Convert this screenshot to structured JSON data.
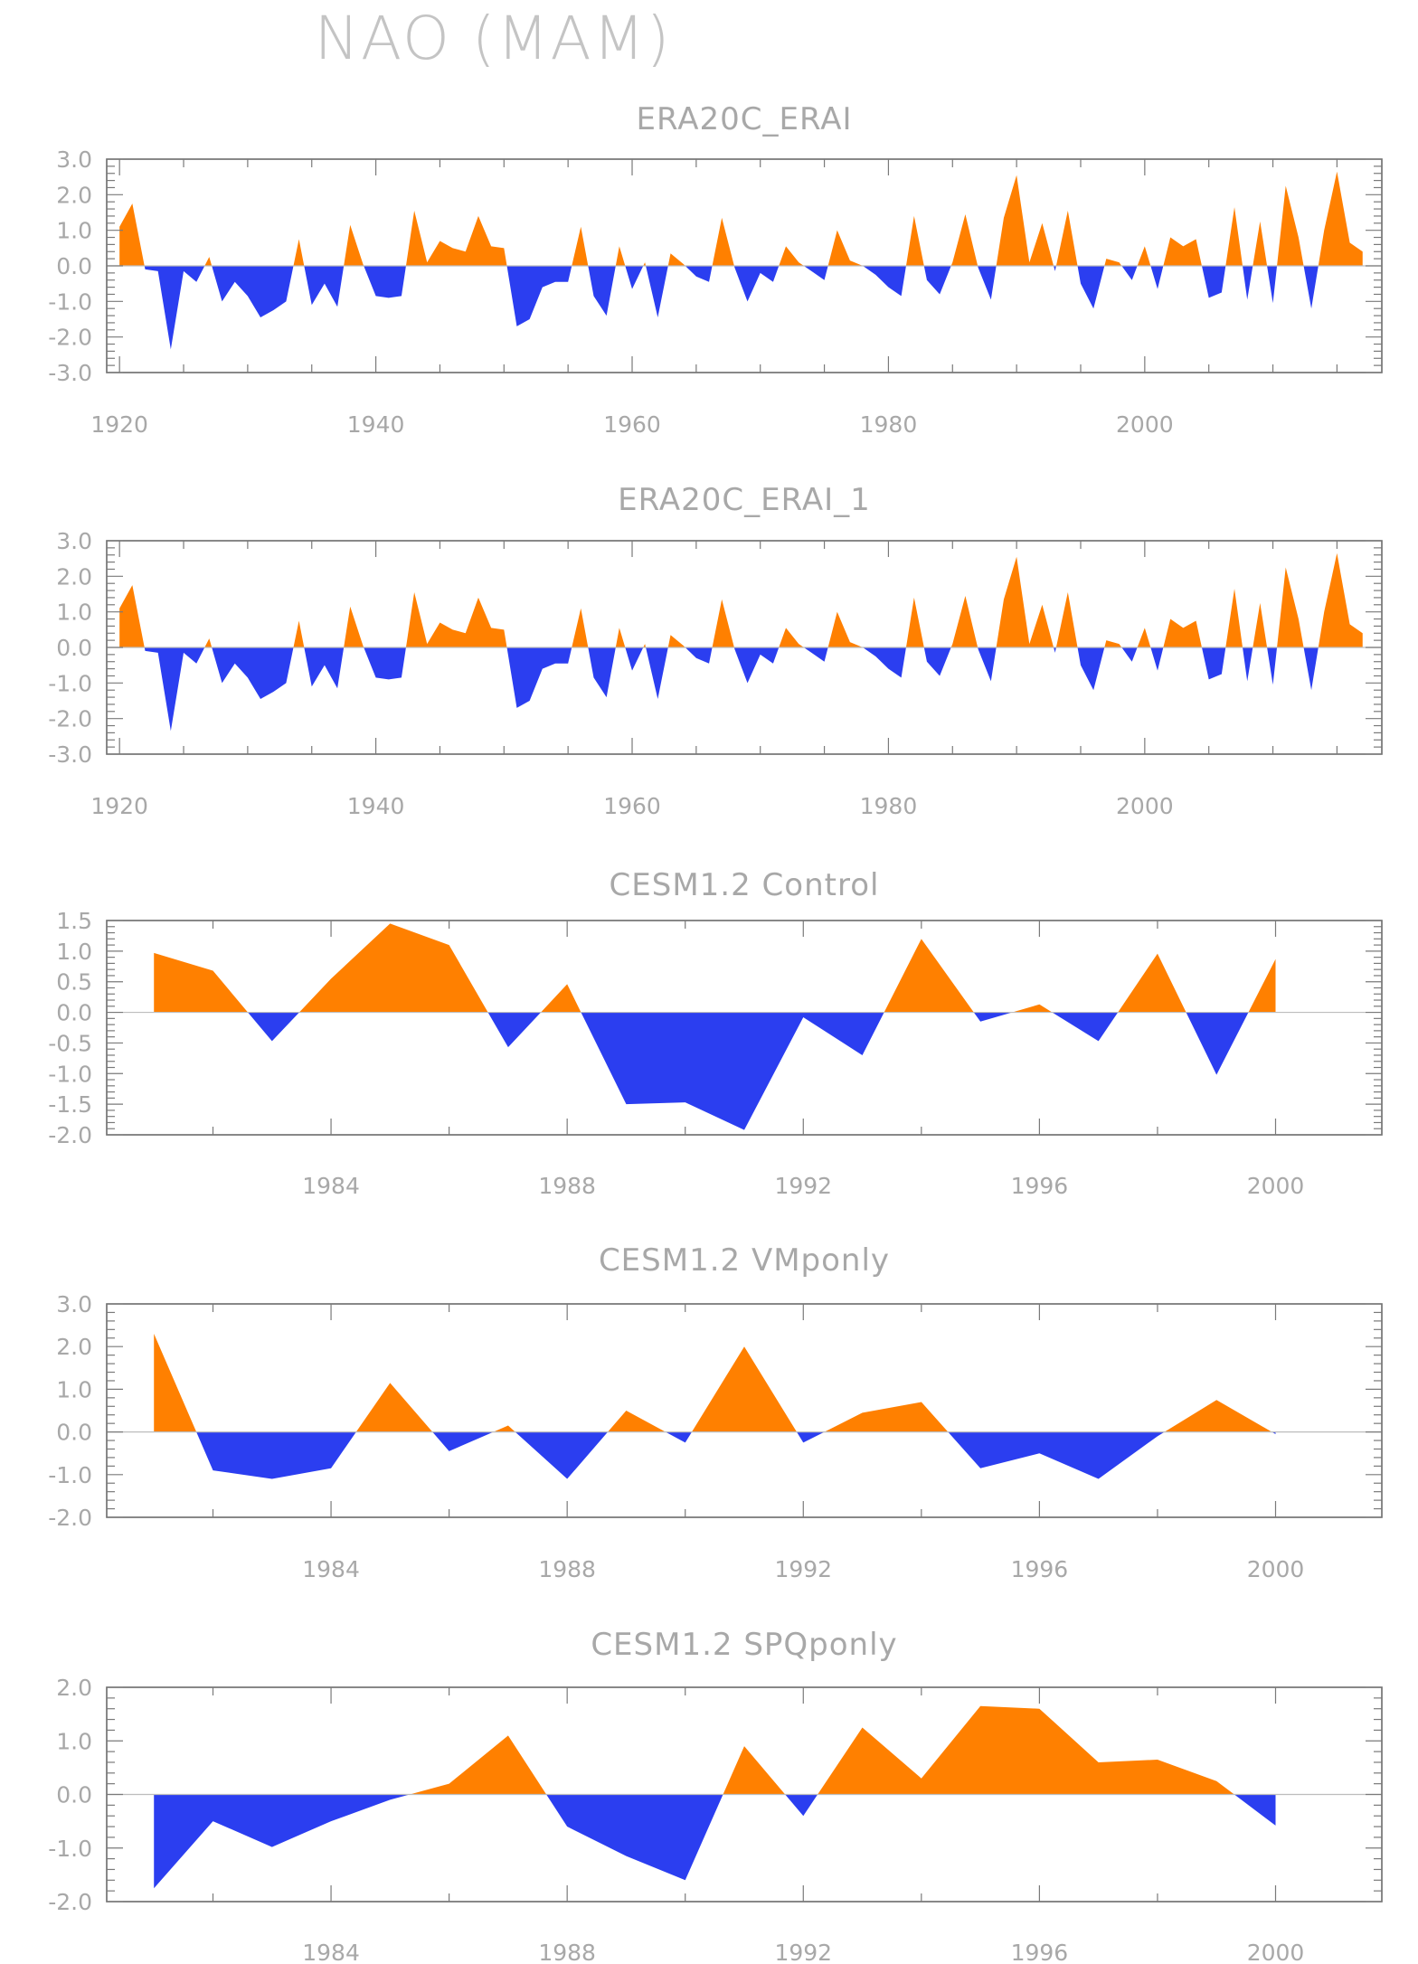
{
  "title": "NAO (MAM)",
  "colors": {
    "positive": "#ff8000",
    "negative": "#2b3ef0",
    "text": "#a8a8a8",
    "frame": "#6a6a6a"
  },
  "chart_data": [
    {
      "type": "area",
      "title": "ERA20C_ERAI",
      "xlabel": "",
      "ylabel": "",
      "xlim": [
        1919,
        2018.5
      ],
      "ylim": [
        -3.0,
        3.0
      ],
      "x_ticks": [
        1920,
        1940,
        1960,
        1980,
        2000
      ],
      "y_ticks": [
        "-3.0",
        "-2.0",
        "-1.0",
        "0.0",
        "1.0",
        "2.0",
        "3.0"
      ],
      "grid": false,
      "x": [
        1920,
        1921,
        1922,
        1923,
        1924,
        1925,
        1926,
        1927,
        1928,
        1929,
        1930,
        1931,
        1932,
        1933,
        1934,
        1935,
        1936,
        1937,
        1938,
        1939,
        1940,
        1941,
        1942,
        1943,
        1944,
        1945,
        1946,
        1947,
        1948,
        1949,
        1950,
        1951,
        1952,
        1953,
        1954,
        1955,
        1956,
        1957,
        1958,
        1959,
        1960,
        1961,
        1962,
        1963,
        1964,
        1965,
        1966,
        1967,
        1968,
        1969,
        1970,
        1971,
        1972,
        1973,
        1974,
        1975,
        1976,
        1977,
        1978,
        1979,
        1980,
        1981,
        1982,
        1983,
        1984,
        1985,
        1986,
        1987,
        1988,
        1989,
        1990,
        1991,
        1992,
        1993,
        1994,
        1995,
        1996,
        1997,
        1998,
        1999,
        2000,
        2001,
        2002,
        2003,
        2004,
        2005,
        2006,
        2007,
        2008,
        2009,
        2010,
        2011,
        2012,
        2013,
        2014,
        2015,
        2016,
        2017
      ],
      "values": [
        1.1,
        1.75,
        -0.1,
        -0.15,
        -2.35,
        -0.15,
        -0.45,
        0.25,
        -1.0,
        -0.45,
        -0.85,
        -1.45,
        -1.25,
        -1.0,
        0.75,
        -1.1,
        -0.5,
        -1.15,
        1.15,
        0.05,
        -0.85,
        -0.9,
        -0.85,
        1.55,
        0.1,
        0.7,
        0.5,
        0.4,
        1.4,
        0.55,
        0.5,
        -1.7,
        -1.5,
        -0.6,
        -0.45,
        -0.45,
        1.1,
        -0.85,
        -1.4,
        0.55,
        -0.65,
        0.1,
        -1.45,
        0.35,
        0.05,
        -0.3,
        -0.45,
        1.35,
        -0.05,
        -1.0,
        -0.2,
        -0.45,
        0.55,
        0.1,
        -0.15,
        -0.4,
        1.0,
        0.15,
        0.0,
        -0.25,
        -0.6,
        -0.85,
        1.4,
        -0.4,
        -0.8,
        0.1,
        1.45,
        -0.05,
        -0.95,
        1.35,
        2.55,
        0.1,
        1.2,
        -0.15,
        1.55,
        -0.5,
        -1.2,
        0.2,
        0.1,
        -0.4,
        0.55,
        -0.65,
        0.8,
        0.55,
        0.75,
        -0.9,
        -0.75,
        1.65,
        -0.95,
        1.25,
        -1.05,
        2.25,
        0.8,
        -1.2,
        1.0,
        2.65,
        0.65,
        0.4
      ]
    },
    {
      "type": "area",
      "title": "ERA20C_ERAI_1",
      "xlabel": "",
      "ylabel": "",
      "xlim": [
        1919,
        2018.5
      ],
      "ylim": [
        -3.0,
        3.0
      ],
      "x_ticks": [
        1920,
        1940,
        1960,
        1980,
        2000
      ],
      "y_ticks": [
        "-3.0",
        "-2.0",
        "-1.0",
        "0.0",
        "1.0",
        "2.0",
        "3.0"
      ],
      "grid": false,
      "x": [
        1920,
        1921,
        1922,
        1923,
        1924,
        1925,
        1926,
        1927,
        1928,
        1929,
        1930,
        1931,
        1932,
        1933,
        1934,
        1935,
        1936,
        1937,
        1938,
        1939,
        1940,
        1941,
        1942,
        1943,
        1944,
        1945,
        1946,
        1947,
        1948,
        1949,
        1950,
        1951,
        1952,
        1953,
        1954,
        1955,
        1956,
        1957,
        1958,
        1959,
        1960,
        1961,
        1962,
        1963,
        1964,
        1965,
        1966,
        1967,
        1968,
        1969,
        1970,
        1971,
        1972,
        1973,
        1974,
        1975,
        1976,
        1977,
        1978,
        1979,
        1980,
        1981,
        1982,
        1983,
        1984,
        1985,
        1986,
        1987,
        1988,
        1989,
        1990,
        1991,
        1992,
        1993,
        1994,
        1995,
        1996,
        1997,
        1998,
        1999,
        2000,
        2001,
        2002,
        2003,
        2004,
        2005,
        2006,
        2007,
        2008,
        2009,
        2010,
        2011,
        2012,
        2013,
        2014,
        2015,
        2016,
        2017
      ],
      "values": [
        1.1,
        1.75,
        -0.1,
        -0.15,
        -2.35,
        -0.15,
        -0.45,
        0.25,
        -1.0,
        -0.45,
        -0.85,
        -1.45,
        -1.25,
        -1.0,
        0.75,
        -1.1,
        -0.5,
        -1.15,
        1.15,
        0.05,
        -0.85,
        -0.9,
        -0.85,
        1.55,
        0.1,
        0.7,
        0.5,
        0.4,
        1.4,
        0.55,
        0.5,
        -1.7,
        -1.5,
        -0.6,
        -0.45,
        -0.45,
        1.1,
        -0.85,
        -1.4,
        0.55,
        -0.65,
        0.1,
        -1.45,
        0.35,
        0.05,
        -0.3,
        -0.45,
        1.35,
        -0.05,
        -1.0,
        -0.2,
        -0.45,
        0.55,
        0.1,
        -0.15,
        -0.4,
        1.0,
        0.15,
        0.0,
        -0.25,
        -0.6,
        -0.85,
        1.4,
        -0.4,
        -0.8,
        0.1,
        1.45,
        -0.05,
        -0.95,
        1.35,
        2.55,
        0.1,
        1.2,
        -0.15,
        1.55,
        -0.5,
        -1.2,
        0.2,
        0.1,
        -0.4,
        0.55,
        -0.65,
        0.8,
        0.55,
        0.75,
        -0.9,
        -0.75,
        1.65,
        -0.95,
        1.25,
        -1.05,
        2.25,
        0.8,
        -1.2,
        1.0,
        2.65,
        0.65,
        0.4
      ]
    },
    {
      "type": "area",
      "title": "CESM1.2 Control",
      "xlabel": "",
      "ylabel": "",
      "xlim": [
        1980.2,
        2001.8
      ],
      "ylim": [
        -2.0,
        1.5
      ],
      "x_ticks": [
        1984,
        1988,
        1992,
        1996,
        2000
      ],
      "y_ticks": [
        "-2.0",
        "-1.5",
        "-1.0",
        "-0.5",
        "0.0",
        "0.5",
        "1.0",
        "1.5"
      ],
      "grid": false,
      "x": [
        1981,
        1982,
        1983,
        1984,
        1985,
        1986,
        1987,
        1988,
        1989,
        1990,
        1991,
        1992,
        1993,
        1994,
        1995,
        1996,
        1997,
        1998,
        1999,
        2000
      ],
      "values": [
        0.97,
        0.68,
        -0.47,
        0.55,
        1.45,
        1.1,
        -0.57,
        0.46,
        -1.5,
        -1.47,
        -1.92,
        -0.08,
        -0.7,
        1.2,
        -0.15,
        0.13,
        -0.47,
        0.96,
        -1.02,
        0.87
      ]
    },
    {
      "type": "area",
      "title": "CESM1.2 VMponly",
      "xlabel": "",
      "ylabel": "",
      "xlim": [
        1980.2,
        2001.8
      ],
      "ylim": [
        -2.0,
        3.0
      ],
      "x_ticks": [
        1984,
        1988,
        1992,
        1996,
        2000
      ],
      "y_ticks": [
        "-2.0",
        "-1.0",
        "0.0",
        "1.0",
        "2.0",
        "3.0"
      ],
      "grid": false,
      "x": [
        1981,
        1982,
        1983,
        1984,
        1985,
        1986,
        1987,
        1988,
        1989,
        1990,
        1991,
        1992,
        1993,
        1994,
        1995,
        1996,
        1997,
        1998,
        1999,
        2000
      ],
      "values": [
        2.3,
        -0.9,
        -1.1,
        -0.85,
        1.15,
        -0.45,
        0.15,
        -1.1,
        0.5,
        -0.25,
        2.0,
        -0.25,
        0.45,
        0.7,
        -0.85,
        -0.5,
        -1.1,
        -0.1,
        0.75,
        -0.05
      ]
    },
    {
      "type": "area",
      "title": "CESM1.2 SPQponly",
      "xlabel": "",
      "ylabel": "",
      "xlim": [
        1980.2,
        2001.8
      ],
      "ylim": [
        -2.0,
        2.0
      ],
      "x_ticks": [
        1984,
        1988,
        1992,
        1996,
        2000
      ],
      "y_ticks": [
        "-2.0",
        "-1.0",
        "0.0",
        "1.0",
        "2.0"
      ],
      "grid": false,
      "x": [
        1981,
        1982,
        1983,
        1984,
        1985,
        1986,
        1987,
        1988,
        1989,
        1990,
        1991,
        1992,
        1993,
        1994,
        1995,
        1996,
        1997,
        1998,
        1999,
        2000
      ],
      "values": [
        -1.75,
        -0.5,
        -0.98,
        -0.5,
        -0.1,
        0.2,
        1.1,
        -0.6,
        -1.15,
        -1.6,
        0.9,
        -0.4,
        1.25,
        0.3,
        1.65,
        1.6,
        0.6,
        0.65,
        0.25,
        -0.58
      ]
    }
  ]
}
